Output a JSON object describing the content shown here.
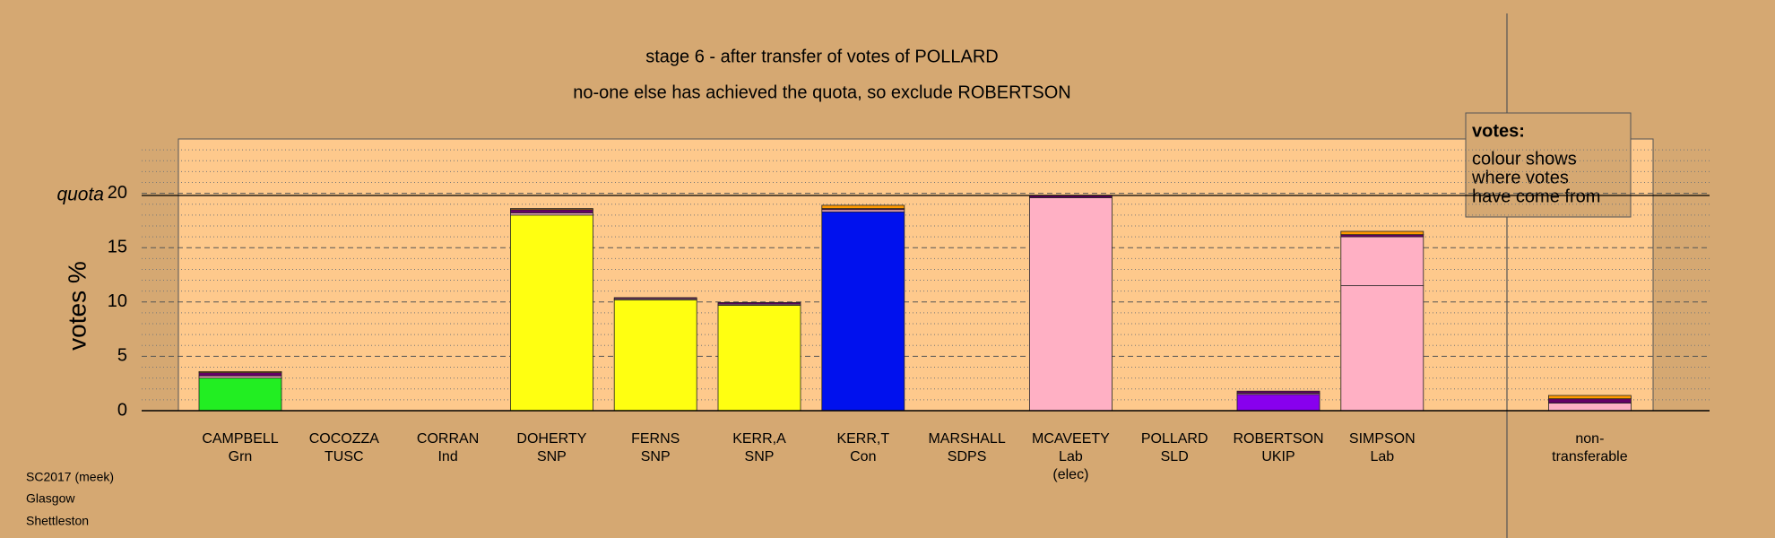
{
  "chart_data": {
    "type": "stacked_bar",
    "title": "stage 6 - after transfer of votes of POLLARD",
    "subtitle": "no-one else has achieved the quota, so exclude ROBERTSON",
    "ylabel": "votes %",
    "categories": [
      [
        "CAMPBELL",
        "Grn"
      ],
      [
        "COCOZZA",
        "TUSC"
      ],
      [
        "CORRAN",
        "Ind"
      ],
      [
        "DOHERTY",
        "SNP"
      ],
      [
        "FERNS",
        "SNP"
      ],
      [
        "KERR,A",
        "SNP"
      ],
      [
        "KERR,T",
        "Con"
      ],
      [
        "MARSHALL",
        "SDPS"
      ],
      [
        "MCAVEETY",
        "Lab",
        "(elec)"
      ],
      [
        "POLLARD",
        "SLD"
      ],
      [
        "ROBERTSON",
        "UKIP"
      ],
      [
        "SIMPSON",
        "Lab"
      ],
      null,
      [
        "non-",
        "transferable"
      ]
    ],
    "series": [
      {
        "colors": [
          "#22ee22",
          null,
          null,
          "#ffff11",
          "#ffff11",
          "#ffff11",
          "#0011ee",
          null,
          "#ffb0c4",
          null,
          "#8800ee",
          "#ffb0c4",
          null,
          null
        ],
        "values": [
          3.0,
          null,
          null,
          18.0,
          10.2,
          9.7,
          18.3,
          null,
          19.6,
          null,
          1.5,
          11.5,
          null,
          null
        ]
      },
      {
        "color": "#ffb0c4",
        "values": [
          0.2,
          null,
          null,
          0.2,
          0.1,
          0.1,
          0.2,
          null,
          null,
          null,
          0.1,
          4.5,
          null,
          0.7
        ]
      },
      {
        "color": "#660066",
        "values": [
          0.3,
          null,
          null,
          0.3,
          0.1,
          0.15,
          0.1,
          null,
          0.2,
          null,
          0.2,
          0.2,
          null,
          0.4
        ]
      },
      {
        "color": "#ff9900",
        "values": [
          0.1,
          null,
          null,
          0.1,
          null,
          null,
          0.3,
          null,
          null,
          null,
          null,
          0.3,
          null,
          0.3
        ]
      }
    ],
    "ylim": [
      0,
      25
    ],
    "yticks": [
      0,
      5,
      10,
      15,
      20
    ],
    "minor_yticks": [
      1,
      2,
      3,
      4,
      6,
      7,
      8,
      9,
      11,
      12,
      13,
      14,
      16,
      17,
      18,
      19,
      21,
      22,
      23,
      24
    ],
    "quota": {
      "value": 19.8,
      "label": "quota"
    },
    "note": {
      "title": "votes:",
      "lines": [
        "colour shows",
        "where votes",
        "have come from"
      ]
    },
    "footer": [
      "SC2017 (meek)",
      "Glasgow",
      "Shettleston"
    ]
  }
}
